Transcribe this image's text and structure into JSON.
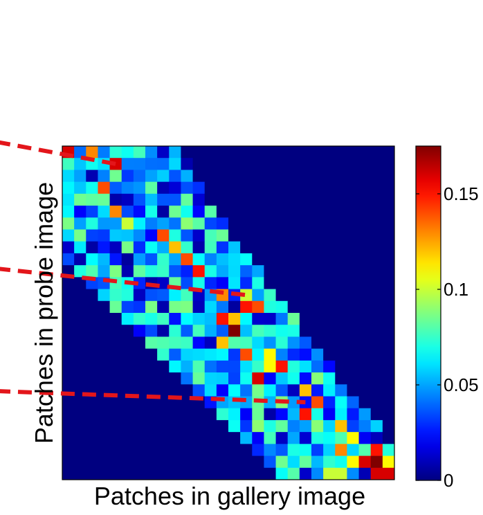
{
  "chart_data": {
    "type": "heatmap",
    "title": "",
    "xlabel": "Patches in gallery image",
    "ylabel": "Patches in probe image",
    "rows": 28,
    "cols": 28,
    "colormap": "jet",
    "clim": [
      0,
      0.175
    ],
    "background_value": 0,
    "colorbar": {
      "ticks": [
        0,
        0.05,
        0.1,
        0.15
      ],
      "tick_labels": [
        "0",
        "0.05",
        "0.1",
        "0.15"
      ]
    },
    "band": {
      "description": "nonzero values lie in a diagonal band of patch pairs",
      "row_ranges": [
        [
          0,
          9
        ],
        [
          0,
          10
        ],
        [
          0,
          10
        ],
        [
          0,
          11
        ],
        [
          0,
          11
        ],
        [
          0,
          12
        ],
        [
          0,
          13
        ],
        [
          0,
          13
        ],
        [
          0,
          14
        ],
        [
          0,
          15
        ],
        [
          1,
          16
        ],
        [
          2,
          16
        ],
        [
          3,
          17
        ],
        [
          4,
          18
        ],
        [
          5,
          19
        ],
        [
          6,
          19
        ],
        [
          7,
          20
        ],
        [
          8,
          21
        ],
        [
          9,
          22
        ],
        [
          10,
          22
        ],
        [
          11,
          23
        ],
        [
          12,
          24
        ],
        [
          13,
          25
        ],
        [
          14,
          26
        ],
        [
          15,
          26
        ],
        [
          16,
          27
        ],
        [
          17,
          27
        ],
        [
          18,
          27
        ]
      ],
      "typical_range": [
        0.02,
        0.09
      ]
    },
    "highlights": [
      {
        "row": 0,
        "col": 0,
        "value": 0.16
      },
      {
        "row": 0,
        "col": 2,
        "value": 0.13
      },
      {
        "row": 1,
        "col": 4,
        "value": 0.16
      },
      {
        "row": 3,
        "col": 3,
        "value": 0.14
      },
      {
        "row": 5,
        "col": 4,
        "value": 0.13
      },
      {
        "row": 6,
        "col": 5,
        "value": 0.1
      },
      {
        "row": 7,
        "col": 8,
        "value": 0.14
      },
      {
        "row": 8,
        "col": 9,
        "value": 0.12
      },
      {
        "row": 9,
        "col": 10,
        "value": 0.14
      },
      {
        "row": 10,
        "col": 11,
        "value": 0.15
      },
      {
        "row": 12,
        "col": 13,
        "value": 0.13
      },
      {
        "row": 12,
        "col": 15,
        "value": 0.1
      },
      {
        "row": 13,
        "col": 15,
        "value": 0.15
      },
      {
        "row": 13,
        "col": 16,
        "value": 0.14
      },
      {
        "row": 14,
        "col": 13,
        "value": 0.15
      },
      {
        "row": 14,
        "col": 14,
        "value": 0.12
      },
      {
        "row": 15,
        "col": 14,
        "value": 0.175
      },
      {
        "row": 16,
        "col": 13,
        "value": 0.12
      },
      {
        "row": 17,
        "col": 15,
        "value": 0.14
      },
      {
        "row": 17,
        "col": 17,
        "value": 0.11
      },
      {
        "row": 18,
        "col": 17,
        "value": 0.11
      },
      {
        "row": 18,
        "col": 18,
        "value": 0.15
      },
      {
        "row": 19,
        "col": 16,
        "value": 0.16
      },
      {
        "row": 20,
        "col": 20,
        "value": 0.12
      },
      {
        "row": 21,
        "col": 21,
        "value": 0.14
      },
      {
        "row": 22,
        "col": 20,
        "value": 0.15
      },
      {
        "row": 23,
        "col": 23,
        "value": 0.12
      },
      {
        "row": 24,
        "col": 24,
        "value": 0.11
      },
      {
        "row": 25,
        "col": 23,
        "value": 0.13
      },
      {
        "row": 25,
        "col": 26,
        "value": 0.15
      },
      {
        "row": 26,
        "col": 25,
        "value": 0.16
      },
      {
        "row": 26,
        "col": 24,
        "value": 0.11
      },
      {
        "row": 26,
        "col": 26,
        "value": 0.175
      },
      {
        "row": 26,
        "col": 27,
        "value": 0.11
      },
      {
        "row": 27,
        "col": 26,
        "value": 0.16
      },
      {
        "row": 27,
        "col": 27,
        "value": 0.16
      },
      {
        "row": 27,
        "col": 22,
        "value": 0.1
      },
      {
        "row": 27,
        "col": 23,
        "value": 0.1
      }
    ],
    "annotations": [
      {
        "type": "dashed-line",
        "color": "#e3161b",
        "target_cell": {
          "row": 1,
          "col": 4
        }
      },
      {
        "type": "dashed-line",
        "color": "#e3161b",
        "target_cell": {
          "row": 12,
          "col": 15
        }
      },
      {
        "type": "dashed-line",
        "color": "#e3161b",
        "target_cell": {
          "row": 21,
          "col": 20
        }
      }
    ],
    "grid": false,
    "legend": "colorbar right"
  }
}
